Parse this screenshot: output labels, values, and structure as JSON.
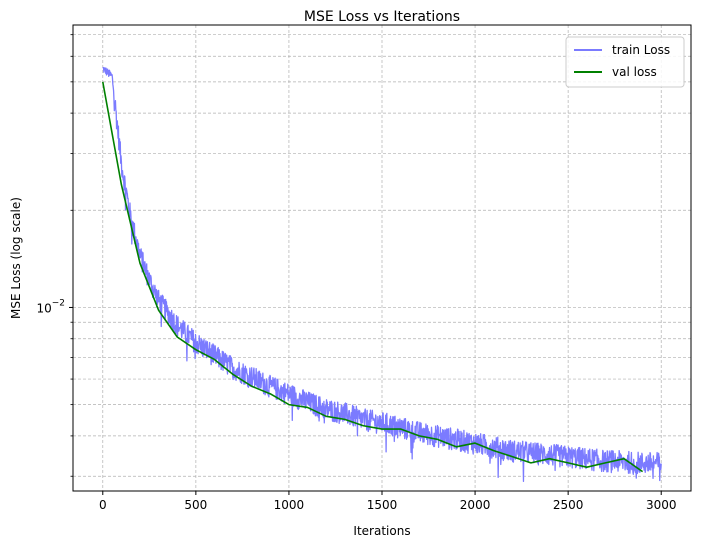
{
  "chart_data": {
    "type": "line",
    "title": "MSE Loss vs Iterations",
    "xlabel": "Iterations",
    "ylabel": "MSE Loss (log scale)",
    "yscale": "log",
    "xlim": [
      -160,
      3160
    ],
    "ylim": [
      0.0027,
      0.075
    ],
    "x_ticks": [
      0,
      500,
      1000,
      1500,
      2000,
      2500,
      3000
    ],
    "x_tick_labels": [
      "0",
      "500",
      "1000",
      "1500",
      "2000",
      "2500",
      "3000"
    ],
    "y_major_tick": 0.01,
    "y_major_tick_base": "10",
    "y_major_tick_exp": "−2",
    "y_minor_ticks": [
      0.003,
      0.004,
      0.005,
      0.006,
      0.007,
      0.008,
      0.009,
      0.02,
      0.03,
      0.04,
      0.05,
      0.06,
      0.07
    ],
    "grid": true,
    "legend_position": "top-right",
    "series": [
      {
        "name": "train Loss",
        "color": "#7b7bff",
        "noisy": true,
        "x": [
          0,
          50,
          80,
          100,
          150,
          200,
          250,
          300,
          400,
          500,
          600,
          700,
          800,
          900,
          1000,
          1100,
          1200,
          1300,
          1400,
          1500,
          1600,
          1700,
          1800,
          1900,
          2000,
          2100,
          2200,
          2300,
          2400,
          2500,
          2600,
          2700,
          2800,
          2900,
          3000
        ],
        "values": [
          0.055,
          0.052,
          0.036,
          0.028,
          0.019,
          0.0145,
          0.0122,
          0.0105,
          0.0088,
          0.0078,
          0.0071,
          0.0065,
          0.0061,
          0.0057,
          0.0054,
          0.0051,
          0.00485,
          0.0047,
          0.0045,
          0.0044,
          0.00425,
          0.0041,
          0.004,
          0.0039,
          0.0038,
          0.0037,
          0.0036,
          0.00355,
          0.0035,
          0.00345,
          0.0034,
          0.00335,
          0.00333,
          0.0033,
          0.0033
        ]
      },
      {
        "name": "val loss",
        "color": "#008000",
        "noisy": false,
        "x": [
          0,
          100,
          200,
          300,
          400,
          500,
          600,
          700,
          800,
          900,
          1000,
          1100,
          1200,
          1300,
          1400,
          1500,
          1600,
          1700,
          1800,
          1900,
          2000,
          2100,
          2200,
          2300,
          2400,
          2500,
          2600,
          2700,
          2800,
          2900
        ],
        "values": [
          0.05,
          0.024,
          0.0137,
          0.0098,
          0.0081,
          0.0074,
          0.0069,
          0.0062,
          0.0057,
          0.0054,
          0.005,
          0.0049,
          0.0046,
          0.0045,
          0.0043,
          0.0042,
          0.0042,
          0.004,
          0.0039,
          0.0037,
          0.0038,
          0.0036,
          0.00345,
          0.0033,
          0.0034,
          0.0033,
          0.0032,
          0.0033,
          0.0034,
          0.0031
        ]
      }
    ]
  }
}
